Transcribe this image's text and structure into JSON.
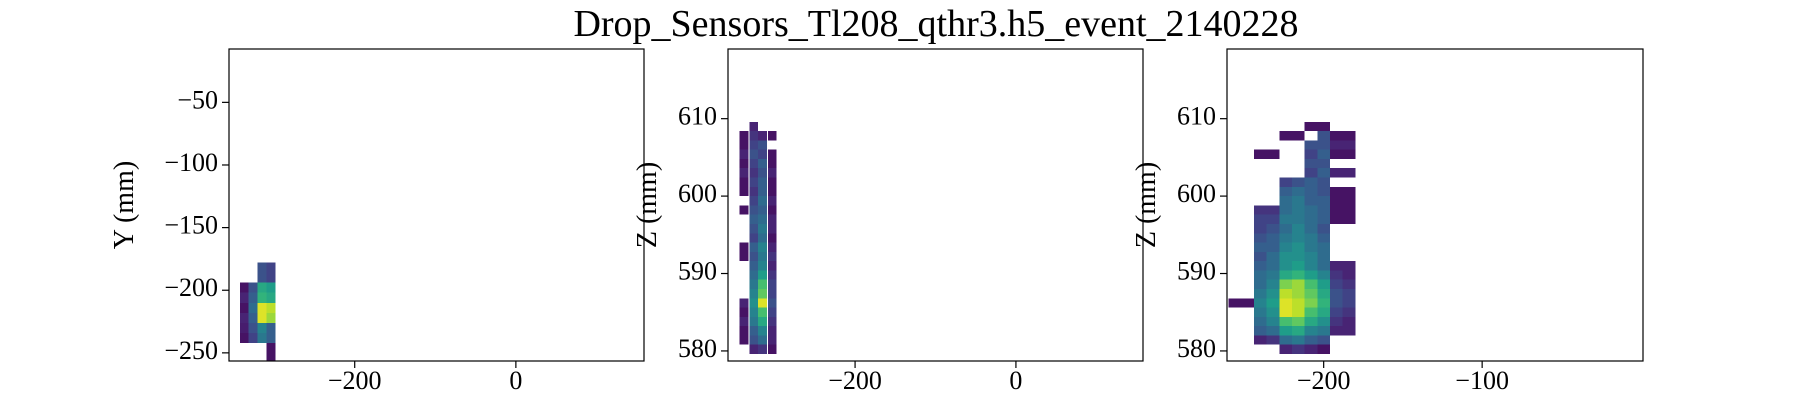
{
  "title": "Drop_Sensors_Tl208_qthr3.h5_event_2140228",
  "chart_data": [
    {
      "type": "heatmap",
      "ylabel": "Y (mm)",
      "colormap": "viridis",
      "xlim": [
        -356,
        159
      ],
      "ylim": [
        -256.5,
        -7.4
      ],
      "xticks": [
        {
          "value": -200,
          "label": "−200"
        },
        0
      ],
      "yticks": [
        {
          "value": -250,
          "label": "−250"
        },
        {
          "value": -200,
          "label": "−200"
        },
        {
          "value": -150,
          "label": "−150"
        },
        {
          "value": -100,
          "label": "−100"
        },
        {
          "value": -50,
          "label": "−50"
        }
      ],
      "x": [
        -337,
        -326,
        -315,
        -304
      ],
      "y": [
        -182,
        -190,
        -198,
        -206,
        -214,
        -222,
        -230,
        -238,
        -246,
        -254
      ],
      "z": [
        [
          null,
          null,
          0.25,
          0.2
        ],
        [
          null,
          null,
          0.25,
          0.2
        ],
        [
          0.05,
          0.25,
          0.6,
          0.55
        ],
        [
          0.1,
          0.3,
          0.65,
          0.6
        ],
        [
          0.05,
          0.35,
          0.95,
          0.9
        ],
        [
          0.1,
          0.3,
          0.95,
          0.85
        ],
        [
          0.08,
          0.25,
          0.45,
          0.3
        ],
        [
          0.05,
          0.2,
          0.4,
          0.3
        ],
        [
          null,
          null,
          null,
          0.05
        ],
        [
          null,
          null,
          null,
          0.05
        ]
      ]
    },
    {
      "type": "heatmap",
      "ylabel": "Z (mm)",
      "colormap": "viridis",
      "xlim": [
        -358,
        158
      ],
      "ylim": [
        578.7,
        619
      ],
      "xticks": [
        {
          "value": -200,
          "label": "−200"
        },
        0
      ],
      "yticks": [
        580,
        590,
        600,
        610
      ],
      "x": [
        -338,
        -326,
        -315,
        -303
      ],
      "y": [
        609.0,
        607.8,
        606.6,
        605.4,
        604.2,
        603.0,
        601.8,
        600.6,
        599.4,
        598.2,
        597.0,
        595.8,
        594.6,
        593.4,
        592.2,
        591.0,
        589.8,
        588.6,
        587.4,
        586.2,
        585.0,
        583.8,
        582.6,
        581.4,
        580.2
      ],
      "z": [
        [
          null,
          0.1,
          null,
          null
        ],
        [
          0.05,
          0.15,
          0.1,
          0.05
        ],
        [
          0.05,
          0.2,
          0.25,
          null
        ],
        [
          0.1,
          0.25,
          0.2,
          0.05
        ],
        [
          0.05,
          0.2,
          0.3,
          0.05
        ],
        [
          0.1,
          0.15,
          0.25,
          0.1
        ],
        [
          0.05,
          0.2,
          0.3,
          0.05
        ],
        [
          0.05,
          0.15,
          0.3,
          0.05
        ],
        [
          null,
          0.2,
          0.35,
          0.1
        ],
        [
          0.05,
          0.25,
          0.3,
          0.05
        ],
        [
          null,
          0.3,
          0.35,
          0.1
        ],
        [
          null,
          0.25,
          0.4,
          0.1
        ],
        [
          null,
          0.2,
          0.35,
          0.05
        ],
        [
          0.05,
          0.3,
          0.45,
          0.1
        ],
        [
          0.05,
          0.25,
          0.4,
          0.15
        ],
        [
          null,
          0.3,
          0.45,
          0.1
        ],
        [
          null,
          0.35,
          0.55,
          0.15
        ],
        [
          null,
          0.4,
          0.7,
          0.2
        ],
        [
          null,
          0.45,
          0.75,
          0.2
        ],
        [
          0.1,
          0.5,
          0.95,
          0.25
        ],
        [
          0.05,
          0.45,
          0.7,
          0.2
        ],
        [
          0.1,
          0.4,
          0.6,
          0.15
        ],
        [
          0.05,
          0.3,
          0.45,
          0.1
        ],
        [
          0.05,
          0.25,
          0.35,
          0.1
        ],
        [
          null,
          0.1,
          0.15,
          0.05
        ]
      ]
    },
    {
      "type": "heatmap",
      "ylabel": "Z (mm)",
      "colormap": "viridis",
      "xlim": [
        -261,
        1.5
      ],
      "ylim": [
        578.7,
        619
      ],
      "xticks": [
        {
          "value": -200,
          "label": "−200"
        },
        {
          "value": -100,
          "label": "−100"
        }
      ],
      "yticks": [
        580,
        590,
        600,
        610
      ],
      "x": [
        -256,
        -248,
        -240,
        -232,
        -224,
        -216,
        -208,
        -200,
        -192,
        -184
      ],
      "y": [
        609.0,
        607.8,
        606.6,
        605.4,
        604.2,
        603.0,
        601.8,
        600.6,
        599.4,
        598.2,
        597.0,
        595.8,
        594.6,
        593.4,
        592.2,
        591.0,
        589.8,
        588.6,
        587.4,
        586.2,
        585.0,
        583.8,
        582.6,
        581.4,
        580.2
      ],
      "z": [
        [
          null,
          null,
          null,
          null,
          null,
          null,
          0.05,
          0.05,
          null,
          null
        ],
        [
          null,
          null,
          null,
          null,
          0.05,
          0.05,
          null,
          0.25,
          0.05,
          0.05
        ],
        [
          null,
          null,
          null,
          null,
          null,
          null,
          0.25,
          0.25,
          0.1,
          0.1
        ],
        [
          null,
          null,
          0.05,
          0.05,
          null,
          null,
          0.2,
          0.3,
          0.05,
          0.05
        ],
        [
          null,
          null,
          null,
          null,
          null,
          null,
          0.25,
          0.25,
          null,
          null
        ],
        [
          null,
          null,
          null,
          null,
          null,
          null,
          0.2,
          0.3,
          0.1,
          0.1
        ],
        [
          null,
          null,
          null,
          null,
          0.2,
          0.25,
          0.3,
          0.25,
          null,
          null
        ],
        [
          null,
          null,
          null,
          null,
          0.3,
          0.35,
          0.3,
          0.25,
          0.05,
          0.05
        ],
        [
          null,
          null,
          null,
          null,
          0.35,
          0.4,
          0.3,
          0.3,
          0.05,
          0.05
        ],
        [
          null,
          null,
          0.15,
          0.15,
          0.35,
          0.4,
          0.35,
          0.3,
          0.05,
          0.05
        ],
        [
          null,
          null,
          0.2,
          0.2,
          0.4,
          0.4,
          0.35,
          0.3,
          0.05,
          0.05
        ],
        [
          null,
          null,
          0.2,
          0.25,
          0.35,
          0.45,
          0.35,
          0.25,
          null,
          null
        ],
        [
          null,
          null,
          0.25,
          0.3,
          0.4,
          0.45,
          0.4,
          0.3,
          null,
          null
        ],
        [
          null,
          null,
          0.3,
          0.3,
          0.45,
          0.5,
          0.4,
          0.35,
          null,
          null
        ],
        [
          null,
          null,
          0.25,
          0.35,
          0.5,
          0.5,
          0.45,
          0.35,
          null,
          null
        ],
        [
          null,
          null,
          0.3,
          0.35,
          0.5,
          0.55,
          0.45,
          0.35,
          0.1,
          0.1
        ],
        [
          null,
          null,
          0.35,
          0.4,
          0.6,
          0.65,
          0.55,
          0.45,
          0.15,
          0.1
        ],
        [
          null,
          null,
          0.35,
          0.45,
          0.8,
          0.85,
          0.7,
          0.55,
          0.2,
          0.15
        ],
        [
          null,
          null,
          0.4,
          0.5,
          0.9,
          0.85,
          0.75,
          0.6,
          0.25,
          0.2
        ],
        [
          0.05,
          0.05,
          0.45,
          0.55,
          0.95,
          0.9,
          0.8,
          0.65,
          0.25,
          0.2
        ],
        [
          null,
          null,
          0.4,
          0.5,
          0.95,
          0.9,
          0.7,
          0.6,
          0.2,
          0.15
        ],
        [
          null,
          null,
          0.35,
          0.45,
          0.7,
          0.75,
          0.6,
          0.5,
          0.15,
          0.1
        ],
        [
          null,
          null,
          0.3,
          0.35,
          0.55,
          0.6,
          0.45,
          0.4,
          0.1,
          0.1
        ],
        [
          null,
          null,
          0.1,
          0.15,
          0.35,
          0.4,
          0.3,
          0.25,
          null,
          null
        ],
        [
          null,
          null,
          null,
          null,
          0.1,
          0.15,
          0.1,
          0.05,
          null,
          null
        ]
      ]
    }
  ]
}
